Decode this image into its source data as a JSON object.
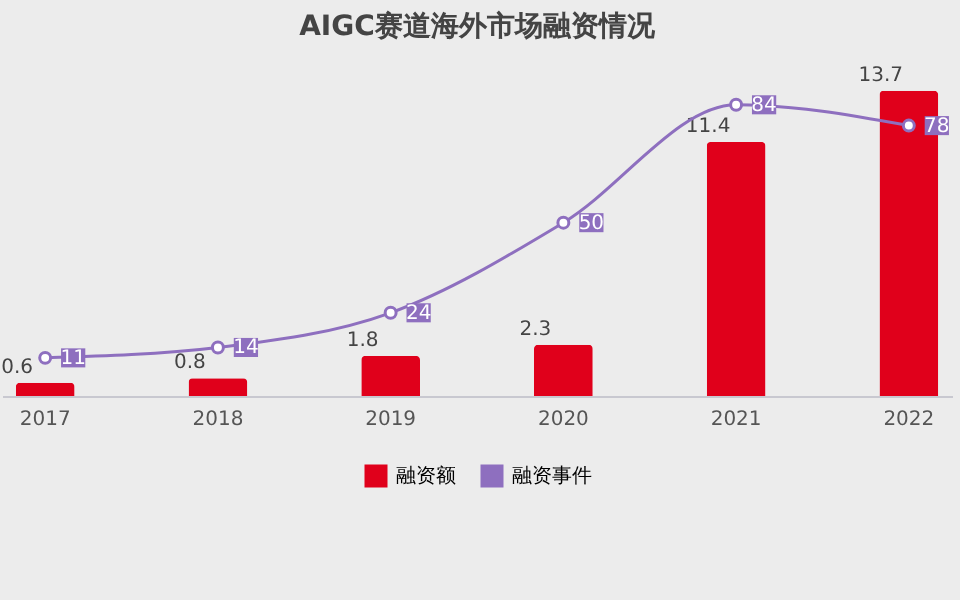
{
  "chart_data": {
    "type": "bar",
    "title": "AIGC赛道海外市场融资情况",
    "categories": [
      "2017",
      "2018",
      "2019",
      "2020",
      "2021",
      "2022"
    ],
    "series": [
      {
        "name": "融资额",
        "color": "#e0001b",
        "values": [
          0.6,
          0.8,
          1.8,
          2.3,
          11.4,
          13.7
        ]
      },
      {
        "name": "融资事件",
        "type": "line",
        "axis": "y2",
        "color": "#8e6fbf",
        "values": [
          11,
          14,
          24,
          50,
          84,
          78
        ]
      }
    ],
    "tick_labels": "x",
    "legend": "bottom",
    "marker": "circle",
    "data_labels": true
  }
}
